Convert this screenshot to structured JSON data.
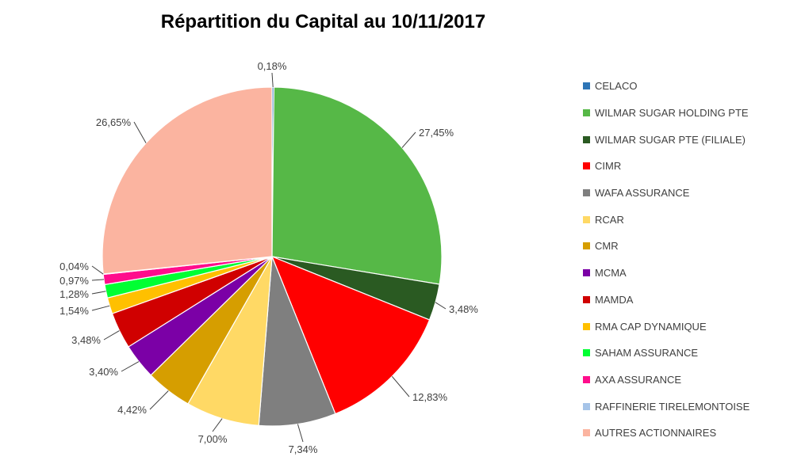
{
  "chart_data": {
    "type": "pie",
    "title": "Répartition du Capital au 10/11/2017",
    "legend_position": "right",
    "slices": [
      {
        "name": "CELACO",
        "value": 0.18,
        "label": "0,18%",
        "color": "#2E75B6"
      },
      {
        "name": "WILMAR SUGAR HOLDING PTE",
        "value": 27.45,
        "label": "27,45%",
        "color": "#56B847"
      },
      {
        "name": "WILMAR SUGAR PTE (FILIALE)",
        "value": 3.48,
        "label": "3,48%",
        "color": "#2A5A22"
      },
      {
        "name": "CIMR",
        "value": 12.83,
        "label": "12,83%",
        "color": "#FF0000"
      },
      {
        "name": "WAFA ASSURANCE",
        "value": 7.34,
        "label": "7,34%",
        "color": "#7F7F7F"
      },
      {
        "name": "RCAR",
        "value": 7.0,
        "label": "7,00%",
        "color": "#FFD965"
      },
      {
        "name": "CMR",
        "value": 4.42,
        "label": "4,42%",
        "color": "#D69E00"
      },
      {
        "name": "MCMA",
        "value": 3.4,
        "label": "3,40%",
        "color": "#7B00A6"
      },
      {
        "name": "MAMDA",
        "value": 3.48,
        "label": "3,48%",
        "color": "#D00000"
      },
      {
        "name": "RMA CAP DYNAMIQUE",
        "value": 1.54,
        "label": "1,54%",
        "color": "#FFC000"
      },
      {
        "name": "SAHAM ASSURANCE",
        "value": 1.28,
        "label": "1,28%",
        "color": "#00FF33"
      },
      {
        "name": "AXA ASSURANCE",
        "value": 0.97,
        "label": "0,97%",
        "color": "#FF0D8C"
      },
      {
        "name": "RAFFINERIE TIRELEMONTOISE",
        "value": 0.04,
        "label": "0,04%",
        "color": "#A6C4E8"
      },
      {
        "name": "AUTRES ACTIONNAIRES",
        "value": 26.65,
        "label": "26,65%",
        "color": "#FBB4A0"
      }
    ]
  }
}
